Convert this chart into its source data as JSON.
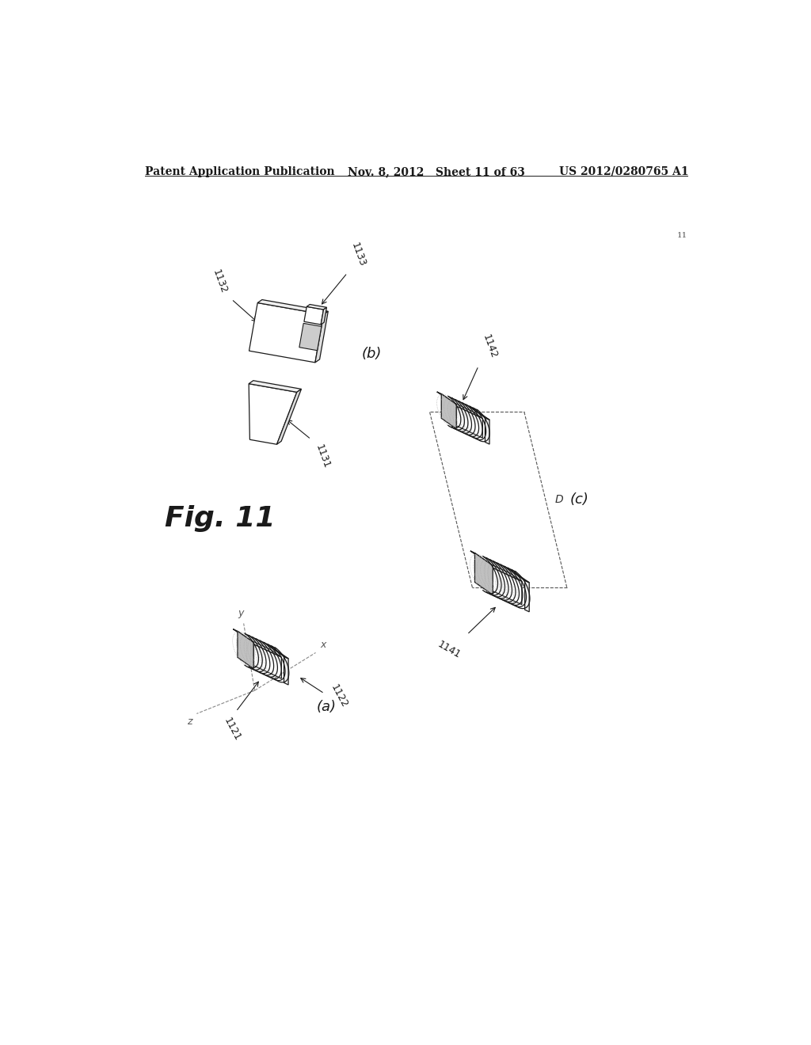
{
  "header_left": "Patent Application Publication",
  "header_mid": "Nov. 8, 2012   Sheet 11 of 63",
  "header_right": "US 2012/0280765 A1",
  "fig_label": "Fig. 11",
  "page_num": "11",
  "sub_labels": [
    "(a)",
    "(b)",
    "(c)"
  ],
  "part_labels_a": [
    "1121",
    "1122"
  ],
  "part_labels_b": [
    "1131",
    "1132",
    "1133"
  ],
  "part_labels_c": [
    "1141",
    "1142"
  ],
  "axes_labels_a": [
    "x",
    "y",
    "z"
  ],
  "dim_label": "D",
  "bg_color": "#ffffff",
  "line_color": "#1a1a1a",
  "gray1": "#f0f0f0",
  "gray2": "#d8d8d8",
  "gray3": "#c0c0c0",
  "font_size_header": 10,
  "font_size_fig": 26,
  "font_size_label": 9,
  "font_size_sub": 13
}
